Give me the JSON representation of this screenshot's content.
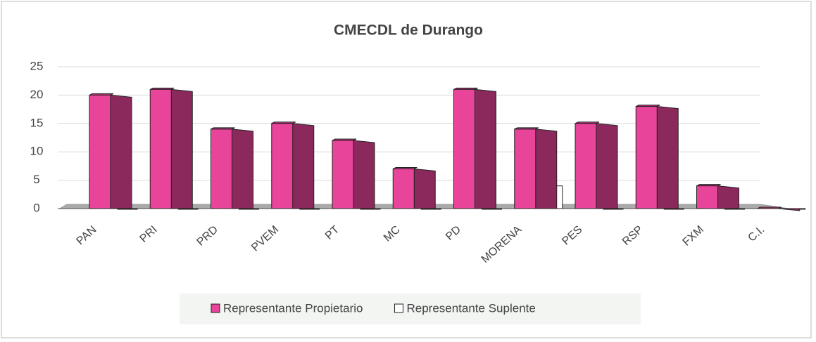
{
  "chart_data": {
    "type": "bar3d",
    "title": "CMECDL de Durango",
    "categories": [
      "PAN",
      "PRI",
      "PRD",
      "PVEM",
      "PT",
      "MC",
      "PD",
      "MORENA",
      "PES",
      "RSP",
      "FXM",
      "C.I."
    ],
    "series": [
      {
        "name": "Representante Propietario",
        "color": "#e8449a",
        "values": [
          20,
          21,
          14,
          15,
          12,
          7,
          21,
          14,
          15,
          18,
          4,
          0
        ]
      },
      {
        "name": "Representante Suplente",
        "color": "#ffffff",
        "values": [
          0,
          0,
          0,
          0,
          0,
          0,
          0,
          4,
          0,
          0,
          0,
          0
        ]
      }
    ],
    "ylim": [
      0,
      25
    ],
    "yticks": [
      0,
      5,
      10,
      15,
      20,
      25
    ],
    "grid": true,
    "legend": "bottom"
  }
}
